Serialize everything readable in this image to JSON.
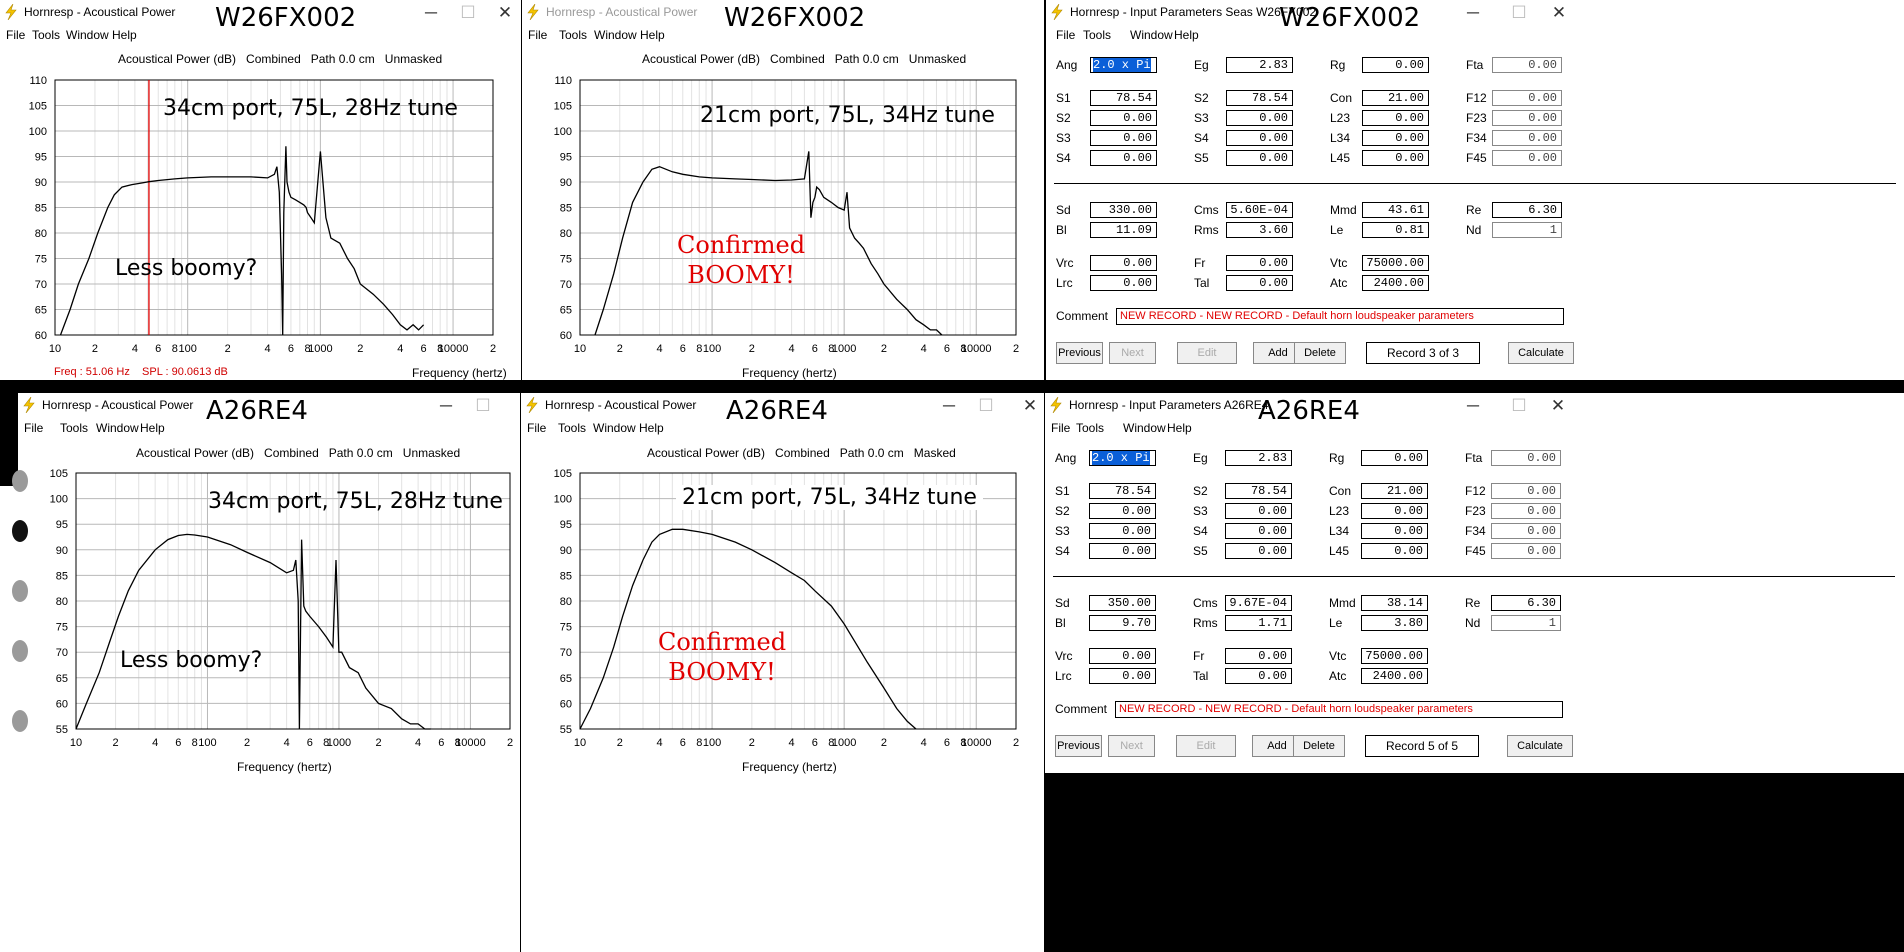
{
  "menus": [
    "File",
    "Tools",
    "Window",
    "Help"
  ],
  "controls": {
    "minimize": "─",
    "maximize": "☐",
    "close": "✕"
  },
  "plots": [
    {
      "id": "w26-plot-a",
      "window_title": "Hornresp - Acoustical Power",
      "title_active": true,
      "label": "W26FX002",
      "chart_title": "Acoustical Power (dB)   Combined   Path 0.0 cm   Unmasked",
      "xlabel": "Frequency (hertz)",
      "x_ticks": [
        "10",
        "2",
        "4",
        "6",
        "8",
        "100",
        "2",
        "4",
        "6",
        "8",
        "1000",
        "2",
        "4",
        "6",
        "8",
        "10000",
        "2"
      ],
      "y_ticks": [
        "110",
        "105",
        "100",
        "95",
        "90",
        "85",
        "80",
        "75",
        "70",
        "65",
        "60"
      ],
      "ylim": [
        60,
        110
      ],
      "xlim": [
        10,
        20000
      ],
      "readout": "Freq : 51.06 Hz    SPL : 90.0613 dB",
      "cursor_freq": 51.06,
      "annotation": "34cm port, 75L, 28Hz tune",
      "note_black": "Less boomy?",
      "note_red": ""
    },
    {
      "id": "w26-plot-b",
      "window_title": "Hornresp - Acoustical Power",
      "title_active": false,
      "label": "W26FX002",
      "chart_title": "Acoustical Power (dB)   Combined   Path 0.0 cm   Unmasked",
      "xlabel": "Frequency (hertz)",
      "x_ticks": [
        "10",
        "2",
        "4",
        "6",
        "8",
        "100",
        "2",
        "4",
        "6",
        "8",
        "1000",
        "2",
        "4",
        "6",
        "8",
        "10000",
        "2"
      ],
      "y_ticks": [
        "110",
        "105",
        "100",
        "95",
        "90",
        "85",
        "80",
        "75",
        "70",
        "65",
        "60"
      ],
      "ylim": [
        60,
        110
      ],
      "xlim": [
        10,
        20000
      ],
      "readout": "",
      "annotation": "21cm port, 75L, 34Hz tune",
      "note_black": "",
      "note_red": "Confirmed\nBOOMY!"
    },
    {
      "id": "a26-plot-a",
      "window_title": "Hornresp - Acoustical Power",
      "title_active": true,
      "label": "A26RE4",
      "chart_title": "Acoustical Power (dB)   Combined   Path 0.0 cm   Unmasked",
      "xlabel": "Frequency (hertz)",
      "x_ticks": [
        "10",
        "2",
        "4",
        "6",
        "8",
        "100",
        "2",
        "4",
        "6",
        "8",
        "1000",
        "2",
        "4",
        "6",
        "8",
        "10000",
        "2"
      ],
      "y_ticks": [
        "105",
        "100",
        "95",
        "90",
        "85",
        "80",
        "75",
        "70",
        "65",
        "60",
        "55"
      ],
      "ylim": [
        55,
        105
      ],
      "xlim": [
        10,
        20000
      ],
      "readout": "",
      "annotation": "34cm port, 75L, 28Hz tune",
      "note_black": "Less boomy?",
      "note_red": ""
    },
    {
      "id": "a26-plot-b",
      "window_title": "Hornresp - Acoustical Power",
      "title_active": true,
      "label": "A26RE4",
      "chart_title": "Acoustical Power (dB)   Combined   Path 0.0 cm   Masked",
      "xlabel": "Frequency (hertz)",
      "x_ticks": [
        "10",
        "2",
        "4",
        "6",
        "8",
        "100",
        "2",
        "4",
        "6",
        "8",
        "1000",
        "2",
        "4",
        "6",
        "8",
        "10000",
        "2"
      ],
      "y_ticks": [
        "105",
        "100",
        "95",
        "90",
        "85",
        "80",
        "75",
        "70",
        "65",
        "60",
        "55"
      ],
      "ylim": [
        55,
        105
      ],
      "xlim": [
        10,
        20000
      ],
      "readout": "",
      "annotation": "21cm port, 75L, 34Hz tune",
      "note_black": "",
      "note_red": "Confirmed\nBOOMY!"
    }
  ],
  "chart_data": [
    {
      "type": "line",
      "title": "Acoustical Power (dB)   Combined   Path 0.0 cm   Unmasked",
      "xlabel": "Frequency (hertz)",
      "ylabel": "",
      "x_scale": "log",
      "xlim": [
        10,
        20000
      ],
      "ylim": [
        60,
        110
      ],
      "grid": true,
      "series": [
        {
          "x": [
            11,
            13,
            15,
            18,
            21,
            25,
            28,
            32,
            38,
            45,
            51,
            60,
            80,
            100,
            150,
            200,
            300,
            400,
            450,
            470,
            490,
            510,
            520,
            530,
            550,
            560,
            580,
            600,
            650,
            700,
            750,
            780,
            800,
            850,
            900,
            1000,
            1100,
            1200,
            1400,
            1600,
            1800,
            2000,
            2500,
            3000,
            3500,
            4000,
            4500,
            5000,
            5500,
            6000
          ],
          "y": [
            60,
            65,
            70,
            75,
            80,
            85,
            87.5,
            89,
            89.5,
            89.8,
            90.06,
            90.3,
            90.6,
            90.8,
            91,
            91,
            91,
            90.8,
            91.5,
            93,
            88,
            72,
            60,
            84,
            97,
            90,
            88,
            87,
            86.5,
            86,
            85.5,
            85,
            84,
            83,
            82,
            96,
            83,
            79,
            78,
            75,
            73,
            70,
            68,
            66,
            64,
            62,
            61,
            62,
            61,
            62
          ]
        }
      ]
    },
    {
      "type": "line",
      "title": "Acoustical Power (dB)   Combined   Path 0.0 cm   Unmasked",
      "xlabel": "Frequency (hertz)",
      "ylabel": "",
      "x_scale": "log",
      "xlim": [
        10,
        20000
      ],
      "ylim": [
        60,
        110
      ],
      "grid": true,
      "series": [
        {
          "x": [
            13,
            15,
            18,
            21,
            25,
            30,
            35,
            40,
            50,
            60,
            80,
            100,
            150,
            200,
            300,
            400,
            500,
            540,
            560,
            580,
            600,
            620,
            650,
            700,
            800,
            900,
            1000,
            1050,
            1100,
            1200,
            1300,
            1400,
            1600,
            1800,
            2000,
            2500,
            3000,
            3500,
            4000,
            4500,
            5000,
            5500
          ],
          "y": [
            60,
            65,
            72,
            79,
            86,
            90,
            92.5,
            93,
            92,
            91.5,
            91,
            90.8,
            90.6,
            90.5,
            90.3,
            90.4,
            90.6,
            96,
            83,
            86,
            87,
            89,
            88.5,
            87,
            86,
            85,
            84.5,
            88,
            81,
            79,
            78,
            77,
            74,
            72,
            70,
            67,
            65,
            63,
            62,
            61,
            61,
            60
          ]
        }
      ]
    },
    {
      "type": "line",
      "title": "Acoustical Power (dB)   Combined   Path 0.0 cm   Unmasked",
      "xlabel": "Frequency (hertz)",
      "ylabel": "",
      "x_scale": "log",
      "xlim": [
        10,
        20000
      ],
      "ylim": [
        55,
        105
      ],
      "grid": true,
      "series": [
        {
          "x": [
            10,
            12,
            15,
            18,
            21,
            25,
            30,
            40,
            50,
            60,
            70,
            80,
            100,
            150,
            200,
            300,
            400,
            450,
            470,
            490,
            500,
            520,
            540,
            560,
            600,
            700,
            800,
            900,
            950,
            1000,
            1050,
            1200,
            1400,
            1600,
            2000,
            2500,
            3000,
            3500,
            4000,
            4500,
            5000
          ],
          "y": [
            55,
            60,
            66,
            72,
            77,
            82,
            86,
            90,
            92,
            92.8,
            93,
            92.9,
            92.5,
            91,
            89.5,
            87.5,
            85.5,
            86,
            88,
            80,
            55,
            92,
            79,
            78,
            77,
            75,
            73,
            71,
            88,
            70,
            70,
            67,
            66,
            63,
            60,
            59,
            57,
            56,
            56,
            55,
            55
          ]
        }
      ]
    },
    {
      "type": "line",
      "title": "Acoustical Power (dB)   Combined   Path 0.0 cm   Masked",
      "xlabel": "Frequency (hertz)",
      "ylabel": "",
      "x_scale": "log",
      "xlim": [
        10,
        20000
      ],
      "ylim": [
        55,
        105
      ],
      "grid": true,
      "series": [
        {
          "x": [
            10,
            12,
            15,
            18,
            21,
            25,
            30,
            35,
            40,
            50,
            60,
            80,
            100,
            150,
            200,
            300,
            400,
            500,
            600,
            800,
            1000,
            1500,
            2000,
            2500,
            3000,
            3500
          ],
          "y": [
            55,
            59,
            65,
            71,
            77,
            83,
            88,
            91.5,
            93,
            94,
            94,
            93.5,
            93,
            91.5,
            90,
            87.5,
            85.5,
            84,
            82,
            79,
            75.5,
            68,
            63,
            59,
            56.5,
            55
          ]
        }
      ]
    }
  ],
  "params": [
    {
      "id": "w26-params",
      "window_title": "Hornresp - Input Parameters   Seas W26FX002",
      "label": "W26FX002",
      "rows1": [
        [
          {
            "l": "Ang",
            "v": "2.0 x Pi",
            "sel": true
          },
          {
            "l": "Eg",
            "v": "2.83"
          },
          {
            "l": "Rg",
            "v": "0.00"
          },
          {
            "l": "Fta",
            "v": "0.00",
            "g": true
          }
        ]
      ],
      "rows2": [
        [
          {
            "l": "S1",
            "v": "78.54"
          },
          {
            "l": "S2",
            "v": "78.54"
          },
          {
            "l": "Con",
            "v": "21.00"
          },
          {
            "l": "F12",
            "v": "0.00",
            "g": true
          }
        ],
        [
          {
            "l": "S2",
            "v": "0.00"
          },
          {
            "l": "S3",
            "v": "0.00"
          },
          {
            "l": "L23",
            "v": "0.00"
          },
          {
            "l": "F23",
            "v": "0.00",
            "g": true
          }
        ],
        [
          {
            "l": "S3",
            "v": "0.00"
          },
          {
            "l": "S4",
            "v": "0.00"
          },
          {
            "l": "L34",
            "v": "0.00"
          },
          {
            "l": "F34",
            "v": "0.00",
            "g": true
          }
        ],
        [
          {
            "l": "S4",
            "v": "0.00"
          },
          {
            "l": "S5",
            "v": "0.00"
          },
          {
            "l": "L45",
            "v": "0.00"
          },
          {
            "l": "F45",
            "v": "0.00",
            "g": true
          }
        ]
      ],
      "rows3": [
        [
          {
            "l": "Sd",
            "v": "330.00"
          },
          {
            "l": "Cms",
            "v": "5.60E-04"
          },
          {
            "l": "Mmd",
            "v": "43.61"
          },
          {
            "l": "Re",
            "v": "6.30"
          }
        ],
        [
          {
            "l": "Bl",
            "v": "11.09"
          },
          {
            "l": "Rms",
            "v": "3.60"
          },
          {
            "l": "Le",
            "v": "0.81"
          },
          {
            "l": "Nd",
            "v": "1",
            "g": true
          }
        ]
      ],
      "rows4": [
        [
          {
            "l": "Vrc",
            "v": "0.00"
          },
          {
            "l": "Fr",
            "v": "0.00"
          },
          {
            "l": "Vtc",
            "v": "75000.00"
          }
        ],
        [
          {
            "l": "Lrc",
            "v": "0.00"
          },
          {
            "l": "Tal",
            "v": "0.00"
          },
          {
            "l": "Atc",
            "v": "2400.00"
          }
        ]
      ],
      "comment_label": "Comment",
      "comment": "NEW RECORD - NEW RECORD - Default horn loudspeaker parameters",
      "buttons": {
        "previous": "Previous",
        "next": "Next",
        "edit": "Edit",
        "add": "Add",
        "delete": "Delete",
        "calculate": "Calculate"
      },
      "record": "Record 3 of 3"
    },
    {
      "id": "a26-params",
      "window_title": "Hornresp - Input Parameters   A26RE4",
      "label": "A26RE4",
      "rows1": [
        [
          {
            "l": "Ang",
            "v": "2.0 x Pi",
            "sel": true
          },
          {
            "l": "Eg",
            "v": "2.83"
          },
          {
            "l": "Rg",
            "v": "0.00"
          },
          {
            "l": "Fta",
            "v": "0.00",
            "g": true
          }
        ]
      ],
      "rows2": [
        [
          {
            "l": "S1",
            "v": "78.54"
          },
          {
            "l": "S2",
            "v": "78.54"
          },
          {
            "l": "Con",
            "v": "21.00"
          },
          {
            "l": "F12",
            "v": "0.00",
            "g": true
          }
        ],
        [
          {
            "l": "S2",
            "v": "0.00"
          },
          {
            "l": "S3",
            "v": "0.00"
          },
          {
            "l": "L23",
            "v": "0.00"
          },
          {
            "l": "F23",
            "v": "0.00",
            "g": true
          }
        ],
        [
          {
            "l": "S3",
            "v": "0.00"
          },
          {
            "l": "S4",
            "v": "0.00"
          },
          {
            "l": "L34",
            "v": "0.00"
          },
          {
            "l": "F34",
            "v": "0.00",
            "g": true
          }
        ],
        [
          {
            "l": "S4",
            "v": "0.00"
          },
          {
            "l": "S5",
            "v": "0.00"
          },
          {
            "l": "L45",
            "v": "0.00"
          },
          {
            "l": "F45",
            "v": "0.00",
            "g": true
          }
        ]
      ],
      "rows3": [
        [
          {
            "l": "Sd",
            "v": "350.00"
          },
          {
            "l": "Cms",
            "v": "9.67E-04"
          },
          {
            "l": "Mmd",
            "v": "38.14"
          },
          {
            "l": "Re",
            "v": "6.30"
          }
        ],
        [
          {
            "l": "Bl",
            "v": "9.70"
          },
          {
            "l": "Rms",
            "v": "1.71"
          },
          {
            "l": "Le",
            "v": "3.80"
          },
          {
            "l": "Nd",
            "v": "1",
            "g": true
          }
        ]
      ],
      "rows4": [
        [
          {
            "l": "Vrc",
            "v": "0.00"
          },
          {
            "l": "Fr",
            "v": "0.00"
          },
          {
            "l": "Vtc",
            "v": "75000.00"
          }
        ],
        [
          {
            "l": "Lrc",
            "v": "0.00"
          },
          {
            "l": "Tal",
            "v": "0.00"
          },
          {
            "l": "Atc",
            "v": "2400.00"
          }
        ]
      ],
      "comment_label": "Comment",
      "comment": "NEW RECORD - NEW RECORD - Default horn loudspeaker parameters",
      "buttons": {
        "previous": "Previous",
        "next": "Next",
        "edit": "Edit",
        "add": "Add",
        "delete": "Delete",
        "calculate": "Calculate"
      },
      "record": "Record 5 of 5"
    }
  ],
  "colors": {
    "curve": "#000000",
    "cursor": "#e00000",
    "grid_major": "#b8b8b8",
    "grid_minor": "#e2e2e2",
    "annotation_red": "#e00000",
    "selection": "#0a5fd8"
  },
  "icons": {
    "app": "lightning-bolt-icon"
  }
}
